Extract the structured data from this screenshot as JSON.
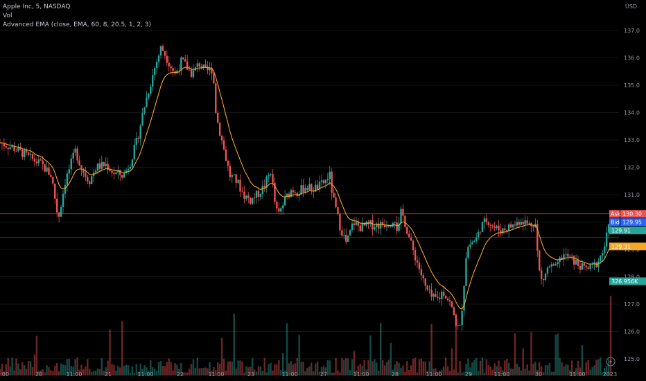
{
  "legend": {
    "symbol_line": "Apple Inc, 5, NASDAQ",
    "vol_line": "Vol",
    "ema_line": "Advanced EMA (close, EMA, 60, 8, 20.5, 1, 2, 3)"
  },
  "colors": {
    "background": "#000000",
    "up": "#26a69a",
    "down": "#ef5350",
    "ema": "#f5a623",
    "ask_line": "#ef5350",
    "bid_line": "#2962ff"
  },
  "chart_data": {
    "type": "candlestick",
    "currency": "USD",
    "ylim": [
      124.8,
      137.5
    ],
    "y_ticks": [
      125.0,
      126.0,
      127.0,
      128.0,
      129.0,
      130.0,
      131.0,
      132.0,
      133.0,
      134.0,
      135.0,
      136.0,
      137.0
    ],
    "x_ticks": [
      "1:00",
      "20",
      "11:00",
      "21",
      "11:00",
      "22",
      "11:00",
      "23",
      "11:00",
      "27",
      "11:00",
      "28",
      "11:00",
      "29",
      "11:00",
      "30",
      "11:00",
      "2023"
    ],
    "close_path": [
      [
        0,
        132.9
      ],
      [
        4,
        132.7
      ],
      [
        8,
        132.4
      ],
      [
        12,
        132.1
      ],
      [
        15,
        131.7
      ],
      [
        17,
        130.1
      ],
      [
        19,
        131.5
      ],
      [
        22,
        132.6
      ],
      [
        24,
        131.9
      ],
      [
        26,
        131.5
      ],
      [
        28,
        132.0
      ],
      [
        31,
        132.1
      ],
      [
        33,
        131.8
      ],
      [
        36,
        131.7
      ],
      [
        38,
        132.2
      ],
      [
        40,
        133.0
      ],
      [
        42,
        134.2
      ],
      [
        45,
        135.6
      ],
      [
        47,
        136.4
      ],
      [
        49,
        135.9
      ],
      [
        51,
        135.4
      ],
      [
        53,
        135.9
      ],
      [
        56,
        135.4
      ],
      [
        58,
        135.8
      ],
      [
        60,
        135.5
      ],
      [
        62,
        135.6
      ],
      [
        63,
        133.9
      ],
      [
        65,
        132.8
      ],
      [
        67,
        131.7
      ],
      [
        69,
        131.5
      ],
      [
        71,
        131.0
      ],
      [
        73,
        130.8
      ],
      [
        75,
        131.0
      ],
      [
        77,
        131.3
      ],
      [
        79,
        131.9
      ],
      [
        80,
        130.8
      ],
      [
        81,
        130.2
      ],
      [
        83,
        130.8
      ],
      [
        85,
        131.2
      ],
      [
        87,
        131.1
      ],
      [
        89,
        131.3
      ],
      [
        91,
        131.2
      ],
      [
        93,
        131.3
      ],
      [
        95,
        131.5
      ],
      [
        96,
        131.8
      ],
      [
        97,
        130.9
      ],
      [
        99,
        129.9
      ],
      [
        101,
        129.2
      ],
      [
        103,
        130.0
      ],
      [
        105,
        129.8
      ],
      [
        108,
        129.9
      ],
      [
        111,
        129.9
      ],
      [
        114,
        130.0
      ],
      [
        115,
        130.2
      ],
      [
        116,
        129.6
      ],
      [
        117,
        130.4
      ],
      [
        118,
        130.0
      ],
      [
        120,
        129.1
      ],
      [
        122,
        128.4
      ],
      [
        124,
        127.6
      ],
      [
        126,
        127.2
      ],
      [
        128,
        127.2
      ],
      [
        129,
        127.5
      ],
      [
        131,
        127.1
      ],
      [
        132,
        126.7
      ],
      [
        133,
        126.3
      ],
      [
        134,
        126.0
      ],
      [
        135,
        127.3
      ],
      [
        136,
        129.0
      ],
      [
        137,
        129.2
      ],
      [
        139,
        129.4
      ],
      [
        140,
        129.8
      ],
      [
        142,
        130.1
      ],
      [
        144,
        129.8
      ],
      [
        146,
        129.7
      ],
      [
        148,
        129.8
      ],
      [
        150,
        129.9
      ],
      [
        152,
        130.1
      ],
      [
        154,
        129.9
      ],
      [
        156,
        130.0
      ],
      [
        157,
        128.3
      ],
      [
        158,
        127.8
      ],
      [
        160,
        128.4
      ],
      [
        162,
        128.3
      ],
      [
        164,
        128.8
      ],
      [
        166,
        128.7
      ],
      [
        168,
        128.5
      ],
      [
        170,
        128.3
      ],
      [
        172,
        128.3
      ],
      [
        174,
        128.5
      ],
      [
        176,
        129.0
      ],
      [
        177,
        129.6
      ],
      [
        178,
        130.0
      ]
    ],
    "current_price": 129.91,
    "ask": 130.3,
    "bid": 129.95,
    "ema_value": 129.31,
    "volume_label": "326.956K",
    "badges": {
      "ask_label": "Ask",
      "bid_label": "Bid"
    }
  },
  "axis": {
    "currency_label": "USD"
  }
}
